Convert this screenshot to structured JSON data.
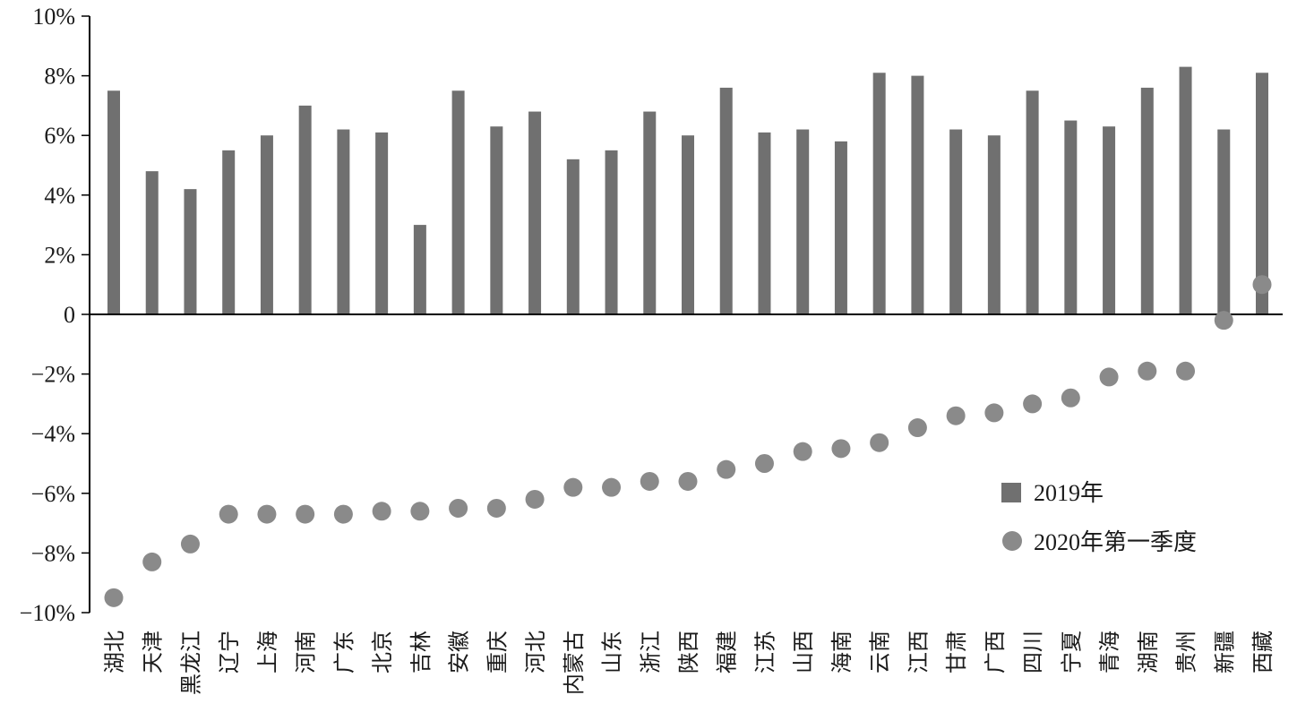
{
  "chart_data": {
    "type": "bar",
    "title": "",
    "xlabel": "",
    "ylabel": "",
    "ylim": [
      -10,
      10
    ],
    "y_ticks": [
      -10,
      -8,
      -6,
      -4,
      -2,
      0,
      2,
      4,
      6,
      8,
      10
    ],
    "y_tick_labels": [
      "−10%",
      "−8%",
      "−6%",
      "−4%",
      "−2%",
      "0",
      "2%",
      "4%",
      "6%",
      "8%",
      "10%"
    ],
    "grid": false,
    "legend_position": "right",
    "categories": [
      "湖北",
      "天津",
      "黑龙江",
      "辽宁",
      "上海",
      "河南",
      "广东",
      "北京",
      "吉林",
      "安徽",
      "重庆",
      "河北",
      "内蒙古",
      "山东",
      "浙江",
      "陕西",
      "福建",
      "江苏",
      "山西",
      "海南",
      "云南",
      "江西",
      "甘肃",
      "广西",
      "四川",
      "宁夏",
      "青海",
      "湖南",
      "贵州",
      "新疆",
      "西藏"
    ],
    "series": [
      {
        "name": "2019年",
        "kind": "bar",
        "color": "#707070",
        "values": [
          7.5,
          4.8,
          4.2,
          5.5,
          6.0,
          7.0,
          6.2,
          6.1,
          3.0,
          7.5,
          6.3,
          6.8,
          5.2,
          5.5,
          6.8,
          6.0,
          7.6,
          6.1,
          6.2,
          5.8,
          8.1,
          8.0,
          6.2,
          6.0,
          7.5,
          6.5,
          6.3,
          7.6,
          8.3,
          6.2,
          8.1
        ]
      },
      {
        "name": "2020年第一季度",
        "kind": "point",
        "color": "#8a8a8a",
        "values": [
          -9.5,
          -8.3,
          -7.7,
          -6.7,
          -6.7,
          -6.7,
          -6.7,
          -6.6,
          -6.6,
          -6.5,
          -6.5,
          -6.2,
          -5.8,
          -5.8,
          -5.6,
          -5.6,
          -5.2,
          -5.0,
          -4.6,
          -4.5,
          -4.3,
          -3.8,
          -3.4,
          -3.3,
          -3.0,
          -2.8,
          -2.1,
          -1.9,
          -1.9,
          -0.2,
          1.0
        ]
      }
    ]
  }
}
